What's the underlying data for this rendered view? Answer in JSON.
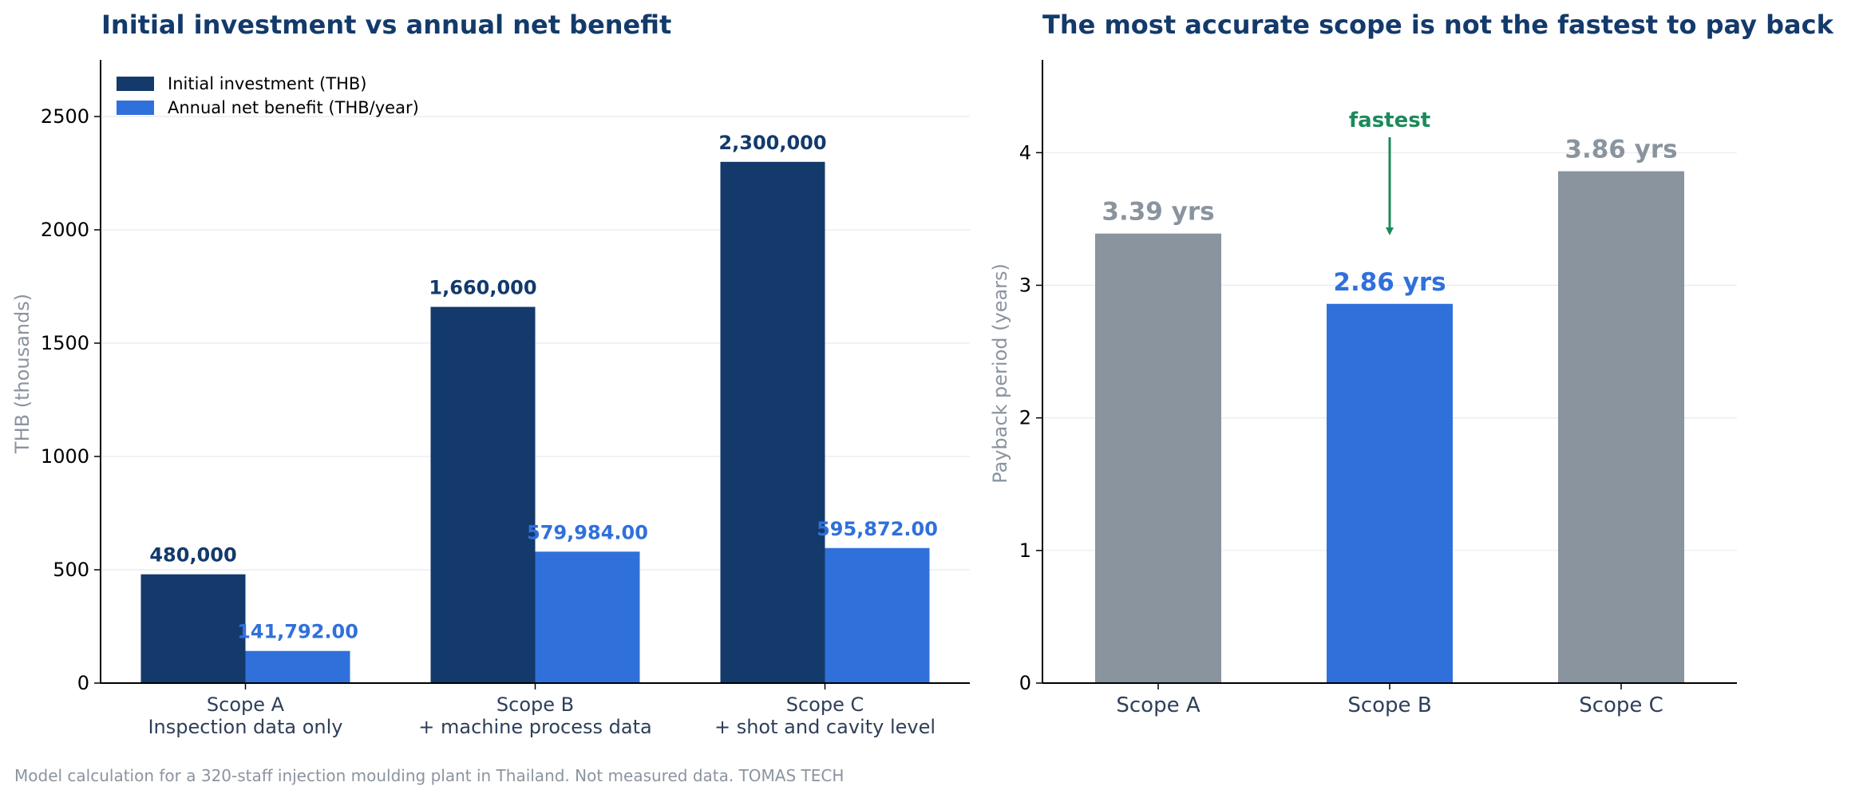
{
  "colors": {
    "navy": "#133A6B",
    "blue": "#3070DB",
    "gray": "#8A949F",
    "green": "#1C8A5A",
    "title": "#133A6B",
    "axis_label": "#8A949F",
    "category_label": "#2E3F59",
    "grid": "#E8EBEE"
  },
  "footnote": "Model calculation for a 320-staff injection moulding plant in Thailand. Not measured data.  TOMAS TECH",
  "chart_data": [
    {
      "type": "bar",
      "title": "Initial investment vs annual net benefit",
      "ylabel": "THB (thousands)",
      "xlabel": "",
      "ylim": [
        0,
        2750
      ],
      "yticks": [
        0,
        500,
        1000,
        1500,
        2000,
        2500
      ],
      "grid": true,
      "legend_position": "top-left",
      "categories": [
        [
          "Scope A",
          "Inspection data only"
        ],
        [
          "Scope B",
          "+ machine process data"
        ],
        [
          "Scope C",
          "+ shot and cavity level"
        ]
      ],
      "series": [
        {
          "name": "Initial investment (THB)",
          "values": [
            480,
            1660,
            2300
          ],
          "data_labels": [
            "480,000",
            "1,660,000",
            "2,300,000"
          ],
          "color": "#133A6B"
        },
        {
          "name": "Annual net benefit (THB/year)",
          "values": [
            141.792,
            579.984,
            595.872
          ],
          "data_labels": [
            "141,792.00",
            "579,984.00",
            "595,872.00"
          ],
          "color": "#3070DB"
        }
      ]
    },
    {
      "type": "bar",
      "title": "The most accurate scope is not the fastest to pay back",
      "ylabel": "Payback period (years)",
      "xlabel": "",
      "ylim": [
        0,
        4.7
      ],
      "yticks": [
        0,
        1,
        2,
        3,
        4
      ],
      "grid": true,
      "categories": [
        "Scope A",
        "Scope B",
        "Scope C"
      ],
      "values": [
        3.39,
        2.86,
        3.86
      ],
      "data_labels": [
        "3.39 yrs",
        "2.86 yrs",
        "3.86 yrs"
      ],
      "colors": [
        "#8A949F",
        "#3070DB",
        "#8A949F"
      ],
      "annotation": {
        "text": "fastest",
        "target_index": 1,
        "color": "#1C8A5A"
      }
    }
  ]
}
